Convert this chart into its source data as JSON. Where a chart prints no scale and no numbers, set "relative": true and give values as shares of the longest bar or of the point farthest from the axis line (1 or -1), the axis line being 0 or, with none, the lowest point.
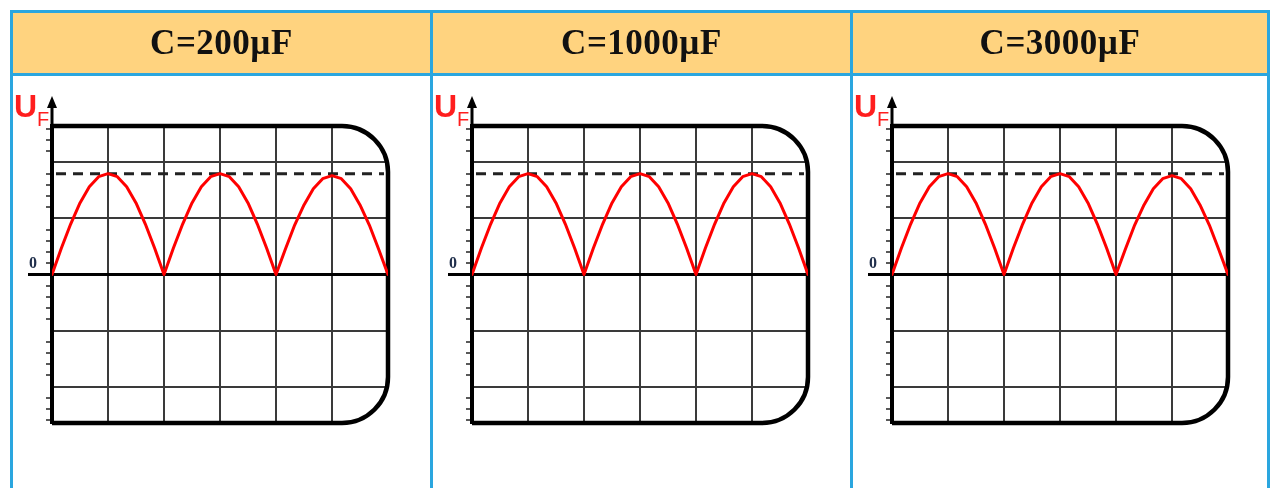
{
  "chart_data": [
    {
      "type": "line",
      "title": "C=200µF",
      "ylabel": "U$_{F}$",
      "categories": [
        null,
        null,
        null,
        null,
        null,
        null,
        null,
        null,
        null,
        null,
        null,
        null,
        null,
        null,
        null,
        null,
        null,
        null,
        null,
        null,
        null,
        null,
        null,
        null,
        null,
        null,
        null,
        null,
        null,
        null,
        null,
        null,
        null,
        null,
        null,
        null,
        null
      ],
      "values": [
        0,
        0.26,
        0.5,
        0.71,
        0.87,
        0.97,
        1,
        0.97,
        0.87,
        0.71,
        0.5,
        0.26,
        0,
        0.26,
        0.5,
        0.71,
        0.87,
        0.97,
        1,
        0.97,
        0.87,
        0.71,
        0.5,
        0.26,
        0,
        0.25,
        0.49,
        0.69,
        0.85,
        0.95,
        0.98,
        0.95,
        0.85,
        0.69,
        0.49,
        0.25,
        0
      ],
      "color": "#ff0000",
      "relative": true,
      "grid": true,
      "tick_labels": false,
      "marker": "none",
      "ref_lines": [
        {
          "axis": "y",
          "value": 1,
          "color": "#222222",
          "line_style": "dashed"
        }
      ],
      "annotations": [
        "0"
      ]
    },
    {
      "type": "line",
      "title": "C=1000µF",
      "ylabel": "U$_{F}$",
      "categories": [
        null,
        null,
        null,
        null,
        null,
        null,
        null,
        null,
        null,
        null,
        null,
        null,
        null,
        null,
        null,
        null,
        null,
        null,
        null,
        null,
        null,
        null,
        null,
        null,
        null,
        null,
        null,
        null,
        null,
        null,
        null,
        null,
        null,
        null,
        null,
        null,
        null
      ],
      "values": [
        0,
        0.26,
        0.5,
        0.71,
        0.87,
        0.97,
        1,
        0.97,
        0.87,
        0.71,
        0.5,
        0.26,
        0,
        0.26,
        0.5,
        0.71,
        0.87,
        0.97,
        1,
        0.97,
        0.87,
        0.71,
        0.5,
        0.26,
        0,
        0.26,
        0.5,
        0.71,
        0.87,
        0.97,
        1,
        0.97,
        0.87,
        0.71,
        0.5,
        0.26,
        0
      ],
      "color": "#ff0000",
      "relative": true,
      "grid": true,
      "tick_labels": false,
      "marker": "none",
      "ref_lines": [
        {
          "axis": "y",
          "value": 1,
          "color": "#222222",
          "line_style": "dashed"
        }
      ],
      "annotations": [
        "0"
      ]
    },
    {
      "type": "line",
      "title": "C=3000µF",
      "ylabel": "U$_{F}$",
      "categories": [
        null,
        null,
        null,
        null,
        null,
        null,
        null,
        null,
        null,
        null,
        null,
        null,
        null,
        null,
        null,
        null,
        null,
        null,
        null,
        null,
        null,
        null,
        null,
        null,
        null,
        null,
        null,
        null,
        null,
        null,
        null,
        null,
        null,
        null,
        null,
        null,
        null
      ],
      "values": [
        0,
        0.26,
        0.5,
        0.71,
        0.87,
        0.97,
        1,
        0.97,
        0.87,
        0.71,
        0.5,
        0.26,
        0,
        0.26,
        0.5,
        0.71,
        0.87,
        0.97,
        1,
        0.97,
        0.87,
        0.71,
        0.5,
        0.26,
        0,
        0.25,
        0.49,
        0.69,
        0.85,
        0.95,
        0.98,
        0.95,
        0.85,
        0.69,
        0.49,
        0.25,
        0
      ],
      "color": "#ff0000",
      "relative": true,
      "grid": true,
      "tick_labels": false,
      "marker": "none",
      "ref_lines": [
        {
          "axis": "y",
          "value": 1,
          "color": "#222222",
          "line_style": "dashed"
        }
      ],
      "annotations": [
        "0"
      ]
    }
  ]
}
